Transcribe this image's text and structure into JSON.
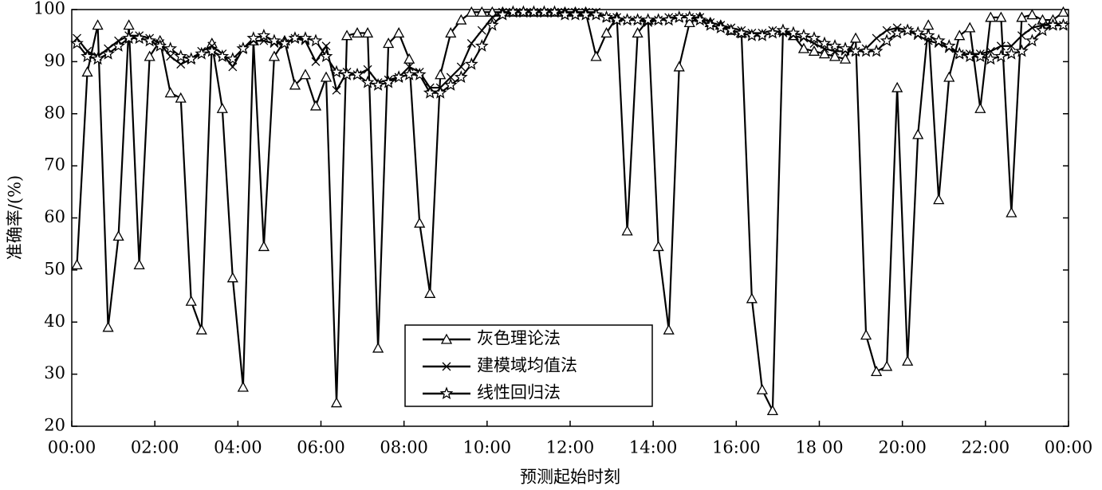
{
  "chart_data": {
    "type": "line",
    "x_label": "预测起始时刻",
    "y_label": "准确率/(%)",
    "x": [
      0.125,
      0.375,
      0.625,
      0.875,
      1.125,
      1.375,
      1.625,
      1.875,
      2.125,
      2.375,
      2.625,
      2.875,
      3.125,
      3.375,
      3.625,
      3.875,
      4.125,
      4.375,
      4.625,
      4.875,
      5.125,
      5.375,
      5.625,
      5.875,
      6.125,
      6.375,
      6.625,
      6.875,
      7.125,
      7.375,
      7.625,
      7.875,
      8.125,
      8.375,
      8.625,
      8.875,
      9.125,
      9.375,
      9.625,
      9.875,
      10.125,
      10.375,
      10.625,
      10.875,
      11.125,
      11.375,
      11.625,
      11.875,
      12.125,
      12.375,
      12.625,
      12.875,
      13.125,
      13.375,
      13.625,
      13.875,
      14.125,
      14.375,
      14.625,
      14.875,
      15.125,
      15.375,
      15.625,
      15.875,
      16.125,
      16.375,
      16.625,
      16.875,
      17.125,
      17.375,
      17.625,
      17.875,
      18.125,
      18.375,
      18.625,
      18.875,
      19.125,
      19.375,
      19.625,
      19.875,
      20.125,
      20.375,
      20.625,
      20.875,
      21.125,
      21.375,
      21.625,
      21.875,
      22.125,
      22.375,
      22.625,
      22.875,
      23.125,
      23.375,
      23.625,
      23.875
    ],
    "series": [
      {
        "name": "灰色理论法",
        "color": "#000000",
        "marker": "triangle",
        "values": [
          51,
          88,
          97,
          39,
          56.5,
          97,
          51,
          91,
          94,
          84,
          83,
          44,
          38.5,
          93.5,
          81,
          48.5,
          27.5,
          94,
          54.5,
          91,
          94,
          85.5,
          87.5,
          81.5,
          87,
          24.5,
          95,
          95.5,
          95.5,
          35,
          93.5,
          95.5,
          90.5,
          59,
          45.5,
          87.5,
          95.5,
          98,
          99.5,
          99.5,
          99.5,
          99.5,
          99.5,
          99.5,
          99.5,
          99.5,
          99.5,
          99.5,
          99.5,
          99.5,
          91,
          95.5,
          98.5,
          57.5,
          95.5,
          98,
          54.5,
          38.5,
          89,
          97.5,
          98.5,
          97.5,
          97,
          96,
          95.5,
          44.5,
          27,
          23,
          96,
          95,
          92.5,
          92,
          91.5,
          91,
          90.5,
          94.5,
          37.5,
          30.5,
          31.5,
          85,
          32.5,
          76,
          97,
          63.5,
          87,
          95,
          96.5,
          81,
          98.5,
          98.5,
          61,
          98.5,
          99,
          98,
          98,
          99.5
        ]
      },
      {
        "name": "建模域均值法",
        "color": "#000000",
        "marker": "x",
        "values": [
          94.5,
          92,
          91,
          92.5,
          94,
          95,
          95,
          94.5,
          93.5,
          91,
          89.5,
          90.5,
          92,
          93,
          91.5,
          89,
          92.5,
          94,
          94,
          93.5,
          93.5,
          94.5,
          94,
          90,
          93,
          84.5,
          88,
          87.5,
          88.5,
          86,
          86.5,
          87,
          89,
          88,
          85,
          85,
          87,
          89,
          93.5,
          96,
          98.5,
          99.5,
          99.5,
          99.5,
          99.5,
          99.5,
          99.5,
          99.5,
          99.5,
          99.5,
          99.5,
          98.5,
          98.5,
          98,
          98,
          97.5,
          98,
          98.5,
          98.5,
          98.5,
          98.5,
          97.5,
          97,
          96.5,
          96,
          95.5,
          95.5,
          96,
          95.5,
          95,
          94.5,
          93.5,
          92.5,
          92,
          92,
          92,
          92.5,
          94.5,
          96,
          96.5,
          96,
          95,
          94,
          93.5,
          92.5,
          91.5,
          91.5,
          91.5,
          92,
          93,
          93,
          95,
          96.5,
          97,
          97,
          97
        ]
      },
      {
        "name": "线性回归法",
        "color": "#000000",
        "marker": "star",
        "values": [
          93.5,
          91,
          90.5,
          91.5,
          93,
          94.5,
          94.5,
          94,
          93,
          92.5,
          91,
          90.5,
          91.5,
          92,
          91,
          90.5,
          92.5,
          94.5,
          95,
          94,
          93.5,
          94.5,
          94.5,
          94,
          91,
          88,
          87.5,
          87.5,
          86,
          85.5,
          86,
          87,
          87.5,
          87.5,
          84,
          84,
          85.5,
          87,
          89.5,
          93,
          97,
          99,
          99.5,
          99.5,
          99.5,
          99.5,
          99.5,
          99,
          99,
          99,
          99,
          98.5,
          98,
          98,
          98,
          98,
          98,
          98,
          98.5,
          98.5,
          98,
          97,
          96.5,
          96,
          95.5,
          95,
          95,
          95.5,
          96,
          95.5,
          95,
          94.5,
          93.5,
          93,
          92.5,
          92,
          92,
          92,
          94,
          95.5,
          96,
          95.5,
          95,
          94,
          93,
          91.5,
          91,
          91,
          90.5,
          91,
          91.5,
          92,
          94,
          96,
          97,
          97
        ]
      }
    ],
    "xlim": [
      0,
      24
    ],
    "xticks": [
      {
        "value": 0,
        "label": "00:00"
      },
      {
        "value": 2,
        "label": "02:00"
      },
      {
        "value": 4,
        "label": "04:00"
      },
      {
        "value": 6,
        "label": "06:00"
      },
      {
        "value": 8,
        "label": "08:00"
      },
      {
        "value": 10,
        "label": "10:00"
      },
      {
        "value": 12,
        "label": "12:00"
      },
      {
        "value": 14,
        "label": "14:00"
      },
      {
        "value": 16,
        "label": "16:00"
      },
      {
        "value": 18,
        "label": "18 00"
      },
      {
        "value": 20,
        "label": "20:00"
      },
      {
        "value": 22,
        "label": "22:00"
      },
      {
        "value": 24,
        "label": "00:00"
      }
    ],
    "ylim": [
      20,
      100
    ],
    "yticks": [
      20,
      30,
      40,
      50,
      60,
      70,
      80,
      90,
      100
    ]
  }
}
